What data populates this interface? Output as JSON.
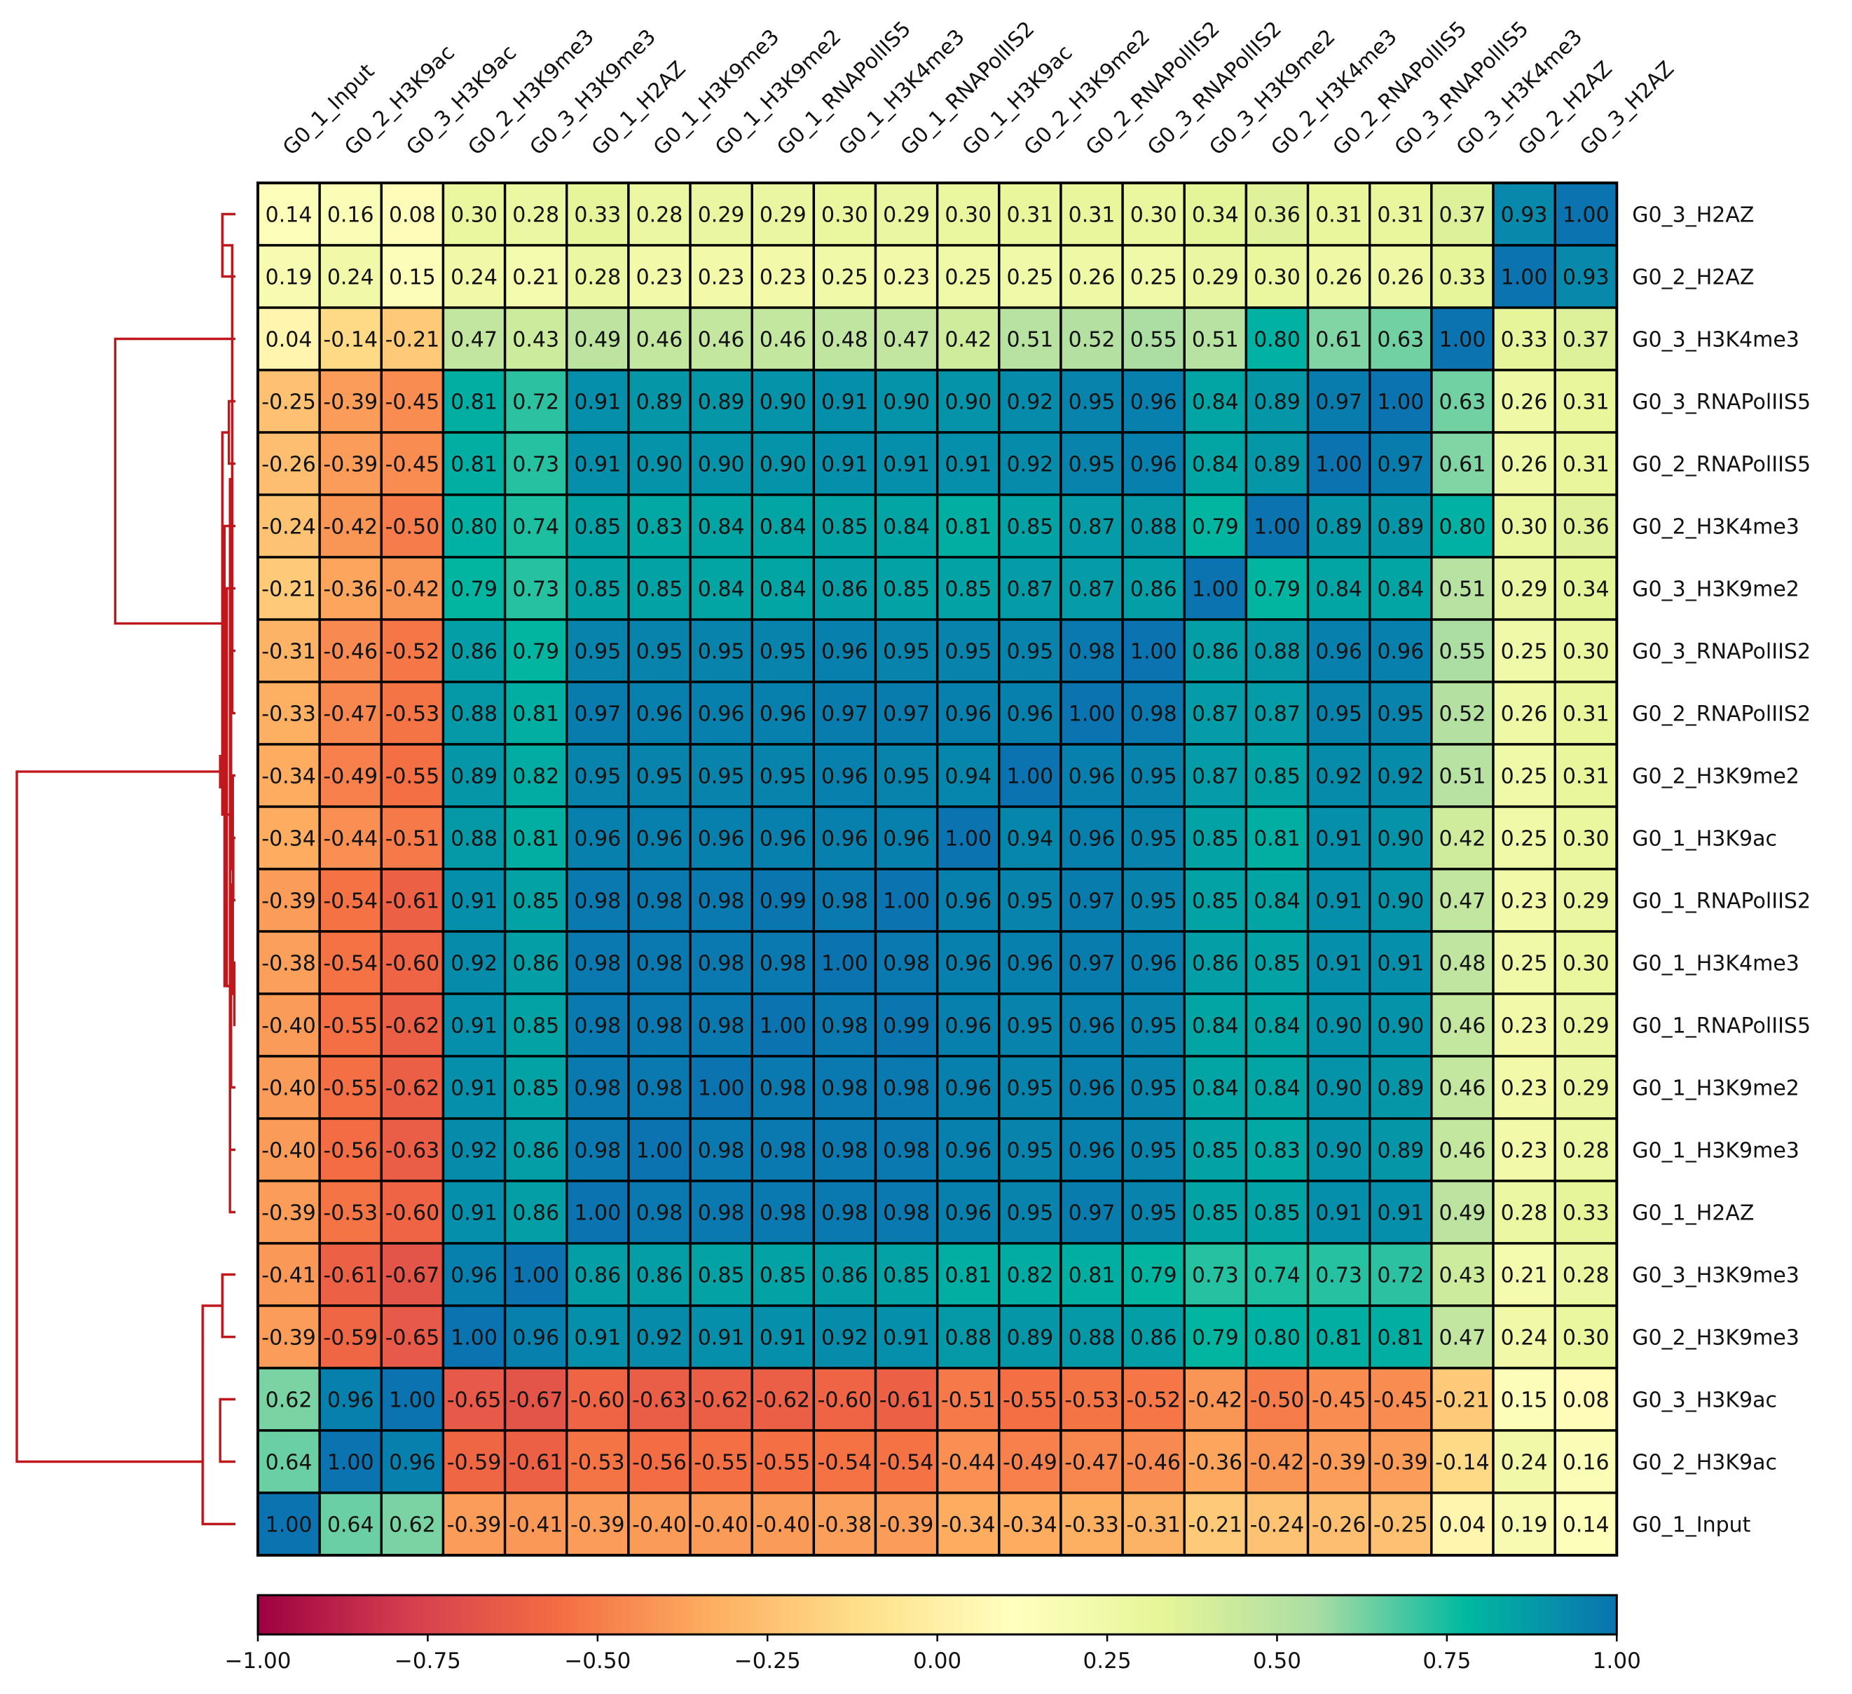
{
  "chart_data": {
    "type": "heatmap",
    "title": "",
    "xlabel": "",
    "ylabel": "",
    "column_labels": [
      "G0_1_Input",
      "G0_2_H3K9ac",
      "G0_3_H3K9ac",
      "G0_2_H3K9me3",
      "G0_3_H3K9me3",
      "G0_1_H2AZ",
      "G0_1_H3K9me3",
      "G0_1_H3K9me2",
      "G0_1_RNAPolIIS5",
      "G0_1_H3K4me3",
      "G0_1_RNAPolIIS2",
      "G0_1_H3K9ac",
      "G0_2_H3K9me2",
      "G0_2_RNAPolIIS2",
      "G0_3_RNAPolIIS2",
      "G0_3_H3K9me2",
      "G0_2_H3K4me3",
      "G0_2_RNAPolIIS5",
      "G0_3_RNAPolIIS5",
      "G0_3_H3K4me3",
      "G0_2_H2AZ",
      "G0_3_H2AZ"
    ],
    "row_labels": [
      "G0_3_H2AZ",
      "G0_2_H2AZ",
      "G0_3_H3K4me3",
      "G0_3_RNAPolIIS5",
      "G0_2_RNAPolIIS5",
      "G0_2_H3K4me3",
      "G0_3_H3K9me2",
      "G0_3_RNAPolIIS2",
      "G0_2_RNAPolIIS2",
      "G0_2_H3K9me2",
      "G0_1_H3K9ac",
      "G0_1_RNAPolIIS2",
      "G0_1_H3K4me3",
      "G0_1_RNAPolIIS5",
      "G0_1_H3K9me2",
      "G0_1_H3K9me3",
      "G0_1_H2AZ",
      "G0_3_H3K9me3",
      "G0_2_H3K9me3",
      "G0_3_H3K9ac",
      "G0_2_H3K9ac",
      "G0_1_Input"
    ],
    "values": [
      [
        "0.14",
        "0.16",
        "0.08",
        "0.30",
        "0.28",
        "0.33",
        "0.28",
        "0.29",
        "0.29",
        "0.30",
        "0.29",
        "0.30",
        "0.31",
        "0.31",
        "0.30",
        "0.34",
        "0.36",
        "0.31",
        "0.31",
        "0.37",
        "0.93",
        "1.00"
      ],
      [
        "0.19",
        "0.24",
        "0.15",
        "0.24",
        "0.21",
        "0.28",
        "0.23",
        "0.23",
        "0.23",
        "0.25",
        "0.23",
        "0.25",
        "0.25",
        "0.26",
        "0.25",
        "0.29",
        "0.30",
        "0.26",
        "0.26",
        "0.33",
        "1.00",
        "0.93"
      ],
      [
        "0.04",
        "-0.14",
        "-0.21",
        "0.47",
        "0.43",
        "0.49",
        "0.46",
        "0.46",
        "0.46",
        "0.48",
        "0.47",
        "0.42",
        "0.51",
        "0.52",
        "0.55",
        "0.51",
        "0.80",
        "0.61",
        "0.63",
        "1.00",
        "0.33",
        "0.37"
      ],
      [
        "-0.25",
        "-0.39",
        "-0.45",
        "0.81",
        "0.72",
        "0.91",
        "0.89",
        "0.89",
        "0.90",
        "0.91",
        "0.90",
        "0.90",
        "0.92",
        "0.95",
        "0.96",
        "0.84",
        "0.89",
        "0.97",
        "1.00",
        "0.63",
        "0.26",
        "0.31"
      ],
      [
        "-0.26",
        "-0.39",
        "-0.45",
        "0.81",
        "0.73",
        "0.91",
        "0.90",
        "0.90",
        "0.90",
        "0.91",
        "0.91",
        "0.91",
        "0.92",
        "0.95",
        "0.96",
        "0.84",
        "0.89",
        "1.00",
        "0.97",
        "0.61",
        "0.26",
        "0.31"
      ],
      [
        "-0.24",
        "-0.42",
        "-0.50",
        "0.80",
        "0.74",
        "0.85",
        "0.83",
        "0.84",
        "0.84",
        "0.85",
        "0.84",
        "0.81",
        "0.85",
        "0.87",
        "0.88",
        "0.79",
        "1.00",
        "0.89",
        "0.89",
        "0.80",
        "0.30",
        "0.36"
      ],
      [
        "-0.21",
        "-0.36",
        "-0.42",
        "0.79",
        "0.73",
        "0.85",
        "0.85",
        "0.84",
        "0.84",
        "0.86",
        "0.85",
        "0.85",
        "0.87",
        "0.87",
        "0.86",
        "1.00",
        "0.79",
        "0.84",
        "0.84",
        "0.51",
        "0.29",
        "0.34"
      ],
      [
        "-0.31",
        "-0.46",
        "-0.52",
        "0.86",
        "0.79",
        "0.95",
        "0.95",
        "0.95",
        "0.95",
        "0.96",
        "0.95",
        "0.95",
        "0.95",
        "0.98",
        "1.00",
        "0.86",
        "0.88",
        "0.96",
        "0.96",
        "0.55",
        "0.25",
        "0.30"
      ],
      [
        "-0.33",
        "-0.47",
        "-0.53",
        "0.88",
        "0.81",
        "0.97",
        "0.96",
        "0.96",
        "0.96",
        "0.97",
        "0.97",
        "0.96",
        "0.96",
        "1.00",
        "0.98",
        "0.87",
        "0.87",
        "0.95",
        "0.95",
        "0.52",
        "0.26",
        "0.31"
      ],
      [
        "-0.34",
        "-0.49",
        "-0.55",
        "0.89",
        "0.82",
        "0.95",
        "0.95",
        "0.95",
        "0.95",
        "0.96",
        "0.95",
        "0.94",
        "1.00",
        "0.96",
        "0.95",
        "0.87",
        "0.85",
        "0.92",
        "0.92",
        "0.51",
        "0.25",
        "0.31"
      ],
      [
        "-0.34",
        "-0.44",
        "-0.51",
        "0.88",
        "0.81",
        "0.96",
        "0.96",
        "0.96",
        "0.96",
        "0.96",
        "0.96",
        "1.00",
        "0.94",
        "0.96",
        "0.95",
        "0.85",
        "0.81",
        "0.91",
        "0.90",
        "0.42",
        "0.25",
        "0.30"
      ],
      [
        "-0.39",
        "-0.54",
        "-0.61",
        "0.91",
        "0.85",
        "0.98",
        "0.98",
        "0.98",
        "0.99",
        "0.98",
        "1.00",
        "0.96",
        "0.95",
        "0.97",
        "0.95",
        "0.85",
        "0.84",
        "0.91",
        "0.90",
        "0.47",
        "0.23",
        "0.29"
      ],
      [
        "-0.38",
        "-0.54",
        "-0.60",
        "0.92",
        "0.86",
        "0.98",
        "0.98",
        "0.98",
        "0.98",
        "1.00",
        "0.98",
        "0.96",
        "0.96",
        "0.97",
        "0.96",
        "0.86",
        "0.85",
        "0.91",
        "0.91",
        "0.48",
        "0.25",
        "0.30"
      ],
      [
        "-0.40",
        "-0.55",
        "-0.62",
        "0.91",
        "0.85",
        "0.98",
        "0.98",
        "0.98",
        "1.00",
        "0.98",
        "0.99",
        "0.96",
        "0.95",
        "0.96",
        "0.95",
        "0.84",
        "0.84",
        "0.90",
        "0.90",
        "0.46",
        "0.23",
        "0.29"
      ],
      [
        "-0.40",
        "-0.55",
        "-0.62",
        "0.91",
        "0.85",
        "0.98",
        "0.98",
        "1.00",
        "0.98",
        "0.98",
        "0.98",
        "0.96",
        "0.95",
        "0.96",
        "0.95",
        "0.84",
        "0.84",
        "0.90",
        "0.89",
        "0.46",
        "0.23",
        "0.29"
      ],
      [
        "-0.40",
        "-0.56",
        "-0.63",
        "0.92",
        "0.86",
        "0.98",
        "1.00",
        "0.98",
        "0.98",
        "0.98",
        "0.98",
        "0.96",
        "0.95",
        "0.96",
        "0.95",
        "0.85",
        "0.83",
        "0.90",
        "0.89",
        "0.46",
        "0.23",
        "0.28"
      ],
      [
        "-0.39",
        "-0.53",
        "-0.60",
        "0.91",
        "0.86",
        "1.00",
        "0.98",
        "0.98",
        "0.98",
        "0.98",
        "0.98",
        "0.96",
        "0.95",
        "0.97",
        "0.95",
        "0.85",
        "0.85",
        "0.91",
        "0.91",
        "0.49",
        "0.28",
        "0.33"
      ],
      [
        "-0.41",
        "-0.61",
        "-0.67",
        "0.96",
        "1.00",
        "0.86",
        "0.86",
        "0.85",
        "0.85",
        "0.86",
        "0.85",
        "0.81",
        "0.82",
        "0.81",
        "0.79",
        "0.73",
        "0.74",
        "0.73",
        "0.72",
        "0.43",
        "0.21",
        "0.28"
      ],
      [
        "-0.39",
        "-0.59",
        "-0.65",
        "1.00",
        "0.96",
        "0.91",
        "0.92",
        "0.91",
        "0.91",
        "0.92",
        "0.91",
        "0.88",
        "0.89",
        "0.88",
        "0.86",
        "0.79",
        "0.80",
        "0.81",
        "0.81",
        "0.47",
        "0.24",
        "0.30"
      ],
      [
        "0.62",
        "0.96",
        "1.00",
        "-0.65",
        "-0.67",
        "-0.60",
        "-0.63",
        "-0.62",
        "-0.62",
        "-0.60",
        "-0.61",
        "-0.51",
        "-0.55",
        "-0.53",
        "-0.52",
        "-0.42",
        "-0.50",
        "-0.45",
        "-0.45",
        "-0.21",
        "0.15",
        "0.08"
      ],
      [
        "0.64",
        "1.00",
        "0.96",
        "-0.59",
        "-0.61",
        "-0.53",
        "-0.56",
        "-0.55",
        "-0.55",
        "-0.54",
        "-0.54",
        "-0.44",
        "-0.49",
        "-0.47",
        "-0.46",
        "-0.36",
        "-0.42",
        "-0.39",
        "-0.39",
        "-0.14",
        "0.24",
        "0.16"
      ],
      [
        "1.00",
        "0.64",
        "0.62",
        "-0.39",
        "-0.41",
        "-0.39",
        "-0.40",
        "-0.40",
        "-0.40",
        "-0.38",
        "-0.39",
        "-0.34",
        "-0.34",
        "-0.33",
        "-0.31",
        "-0.21",
        "-0.24",
        "-0.26",
        "-0.25",
        "0.04",
        "0.19",
        "0.14"
      ]
    ],
    "colorbar": {
      "range": [
        -1.0,
        1.0
      ],
      "tick_labels": [
        "−1.00",
        "−0.75",
        "−0.50",
        "−0.25",
        "0.00",
        "0.25",
        "0.50",
        "0.75",
        "1.00"
      ],
      "tick_values": [
        -1.0,
        -0.75,
        -0.5,
        -0.25,
        0.0,
        0.25,
        0.5,
        0.75,
        1.0
      ]
    },
    "colormap": [
      "#9e0142",
      "#d53e4f",
      "#f46d43",
      "#fdae61",
      "#fee08b",
      "#ffffbf",
      "#e6f598",
      "#abdda4",
      "#00b9a0",
      "#0a73b0"
    ],
    "dendrogram_color": "#c0171c",
    "dendrogram": {
      "leaves": 22,
      "max_height": 1.0,
      "links": [
        [
          0,
          1,
          0.06
        ],
        [
          12,
          13,
          0.005
        ],
        [
          10,
          11,
          0.01
        ],
        [
          9,
          23,
          0.012
        ],
        [
          8,
          22,
          0.015
        ],
        [
          7,
          24,
          0.02
        ],
        [
          14,
          25,
          0.02
        ],
        [
          15,
          26,
          0.025
        ],
        [
          16,
          27,
          0.025
        ],
        [
          3,
          4,
          0.03
        ],
        [
          6,
          28,
          0.04
        ],
        [
          5,
          30,
          0.05
        ],
        [
          29,
          31,
          0.06
        ],
        [
          17,
          18,
          0.06
        ],
        [
          32,
          33,
          0.07
        ],
        [
          19,
          20,
          0.07
        ],
        [
          21,
          35,
          0.15
        ],
        [
          2,
          34,
          0.55
        ],
        [
          21.5,
          36,
          1.0
        ]
      ]
    }
  }
}
